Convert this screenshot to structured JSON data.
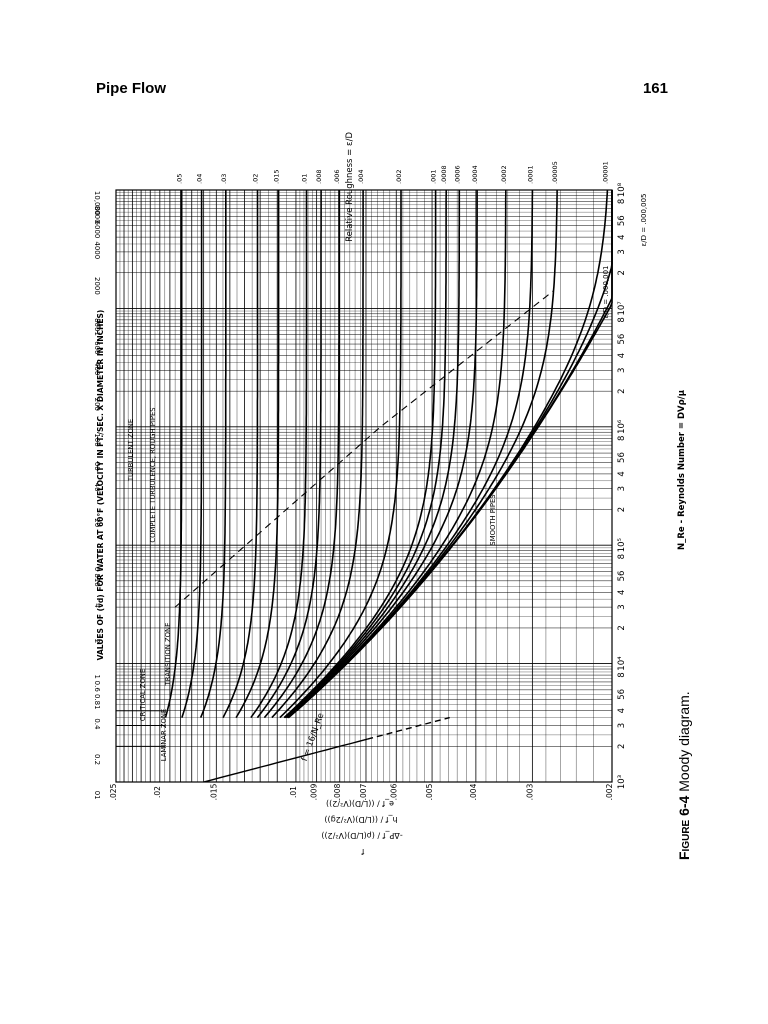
{
  "header": {
    "title": "Pipe Flow",
    "page_number": "161"
  },
  "caption": {
    "label": "Figure 6-4",
    "text": "Moody diagram."
  },
  "chart_data": {
    "type": "line",
    "title": "",
    "xlabel": "N_Re - Reynolds Number = DVρ/μ",
    "ylabel": "f",
    "y_formula_terms": [
      "f",
      "-ΔP_f / (ρ(L/D)(V²/2))",
      "h_f / ((L/D)(V²/2g))",
      "e_f / ((L/D)(V²/2))"
    ],
    "top_axis_label": "VALUES OF (vd) FOR WATER AT 60°F (VELOCITY IN FT./SEC. X DIAMETER IN INCHES)",
    "right_axis_label": "Relative Roughness = ε/D",
    "x_scale": "log",
    "y_scale": "log",
    "xlim": [
      1000,
      100000000
    ],
    "ylim": [
      0.002,
      0.025
    ],
    "x_tick_labels": [
      "10³",
      "2",
      "3",
      "4",
      "56",
      "8",
      "10⁴",
      "2",
      "3",
      "4",
      "56",
      "8",
      "10⁵",
      "2",
      "3",
      "4",
      "56",
      "8",
      "10⁶",
      "2",
      "3",
      "4",
      "56",
      "8",
      "10⁷",
      "2",
      "3",
      "4",
      "56",
      "8",
      "10⁸"
    ],
    "y_tick_labels": [
      ".025",
      ".02",
      ".015",
      ".01",
      ".009",
      ".008",
      ".007",
      ".006",
      ".005",
      ".004",
      ".003",
      ".002"
    ],
    "top_tick_labels": [
      "01",
      "0.2",
      "0.4",
      "0.6 0.81",
      "1",
      "2",
      "4",
      "6 810",
      "20",
      "40",
      "60",
      "100",
      "200",
      "400",
      "600",
      "8001",
      "2000",
      "4000",
      "6000",
      "8000",
      "10,000"
    ],
    "roughness_labels": [
      ".05",
      ".04",
      ".03",
      ".02",
      ".015",
      ".01",
      ".008",
      ".006",
      ".004",
      ".002",
      ".001",
      ".0008",
      ".0006",
      ".0004",
      ".0002",
      ".0001",
      ".00005",
      ".00001"
    ],
    "roughness_values": [
      0.05,
      0.04,
      0.03,
      0.02,
      0.015,
      0.01,
      0.008,
      0.006,
      0.004,
      0.002,
      0.001,
      0.0008,
      0.0006,
      0.0004,
      0.0002,
      0.0001,
      5e-05,
      1e-05
    ],
    "extra_curve_labels": [
      "ε/D = .000,001",
      "ε/D = .000,005"
    ],
    "zone_labels": [
      "LAMINAR ZONE",
      "CRITICAL ZONE",
      "TRANSITION ZONE",
      "COMPLETE TURBULENCE, ROUGH PIPES",
      "TURBULENT ZONE",
      "SMOOTH PIPES"
    ],
    "laminar_equation": "f = 16/N_Re",
    "grid": true,
    "legend": "none"
  }
}
